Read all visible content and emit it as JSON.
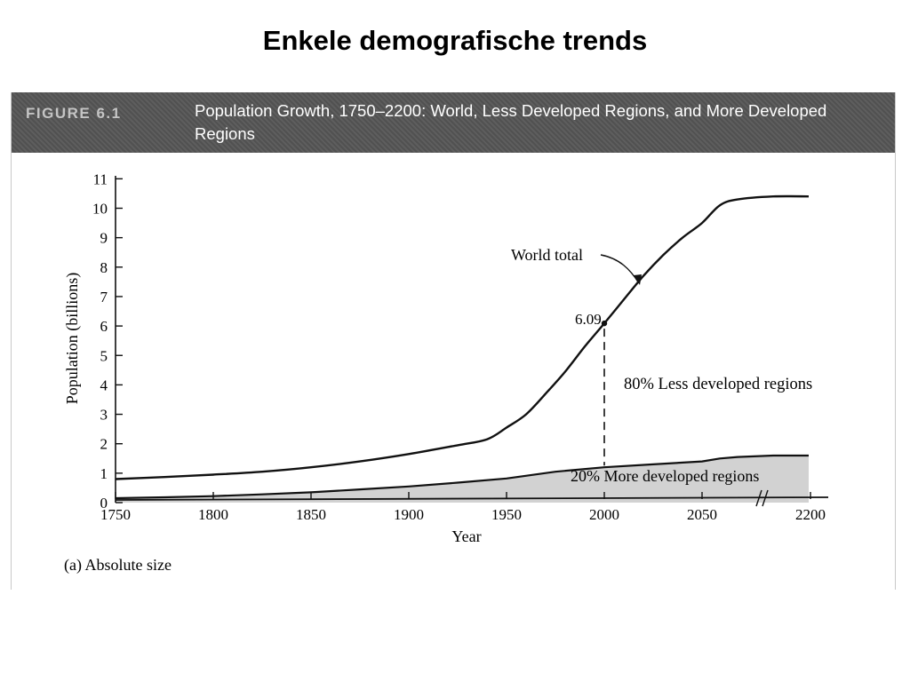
{
  "slide": {
    "title": "Enkele demografische trends"
  },
  "figure": {
    "label": "FIGURE 6.1",
    "title": "Population Growth, 1750–2200: World, Less Developed Regions, and More Developed Regions",
    "caption": "(a) Absolute size"
  },
  "chart_data": {
    "type": "area",
    "xlabel": "Year",
    "ylabel": "Population (billions)",
    "x_ticks": [
      1750,
      1800,
      1850,
      1900,
      1950,
      2000,
      2050,
      2200
    ],
    "y_ticks": [
      0,
      1,
      2,
      3,
      4,
      5,
      6,
      7,
      8,
      9,
      10,
      11
    ],
    "ylim": [
      0,
      11
    ],
    "axis_break_between": [
      2050,
      2200
    ],
    "series": [
      {
        "name": "World total",
        "x": [
          1750,
          1775,
          1800,
          1825,
          1850,
          1875,
          1900,
          1925,
          1940,
          1950,
          1960,
          1970,
          1980,
          1990,
          2000,
          2010,
          2020,
          2030,
          2040,
          2050,
          2075,
          2100,
          2150,
          2200
        ],
        "values": [
          0.8,
          0.87,
          0.95,
          1.05,
          1.2,
          1.4,
          1.65,
          1.95,
          2.15,
          2.55,
          3.0,
          3.7,
          4.45,
          5.3,
          6.09,
          6.9,
          7.7,
          8.4,
          9.0,
          9.5,
          10.1,
          10.3,
          10.4,
          10.4
        ]
      },
      {
        "name": "More developed regions",
        "x": [
          1750,
          1775,
          1800,
          1825,
          1850,
          1875,
          1900,
          1925,
          1950,
          1975,
          2000,
          2025,
          2050,
          2075,
          2100,
          2150,
          2200
        ],
        "values": [
          0.15,
          0.18,
          0.22,
          0.28,
          0.35,
          0.45,
          0.55,
          0.68,
          0.82,
          1.05,
          1.2,
          1.3,
          1.4,
          1.5,
          1.55,
          1.6,
          1.6
        ]
      }
    ],
    "annotations": {
      "world_total": "World total",
      "value_2000": "6.09",
      "less_developed": "80% Less developed regions",
      "more_developed": "20% More developed regions"
    },
    "colors": {
      "line": "#111111",
      "more_developed_fill": "#d2d2d2",
      "header": "#555555"
    }
  }
}
